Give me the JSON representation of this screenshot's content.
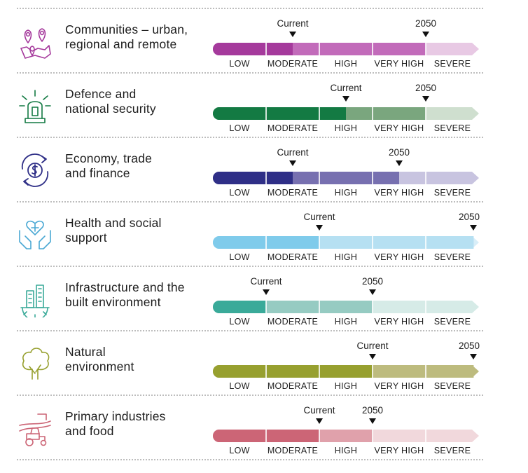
{
  "levels": [
    "LOW",
    "MODERATE",
    "HIGH",
    "VERY HIGH",
    "SEVERE"
  ],
  "marker_labels": {
    "current": "Current",
    "future": "2050"
  },
  "chart_data": {
    "type": "bar",
    "categories": [
      "LOW",
      "MODERATE",
      "HIGH",
      "VERY HIGH",
      "SEVERE"
    ],
    "scale": "0 = LOW ... 5 = end of SEVERE",
    "rows": [
      {
        "name": "Communities – urban, regional and remote",
        "lines": [
          "Communities – urban,",
          "regional and remote"
        ],
        "current": 1.5,
        "2050": 4.0,
        "dark": "#a53a9c",
        "light": "#c26bba",
        "pale": "#e8c9e4",
        "icon": "location-pins-map-icon"
      },
      {
        "name": "Defence and national security",
        "lines": [
          "Defence and",
          "national security"
        ],
        "current": 2.5,
        "2050": 4.0,
        "dark": "#137a43",
        "light": "#7aa67e",
        "pale": "#cfdfcf",
        "icon": "siren-alarm-icon"
      },
      {
        "name": "Economy, trade and finance",
        "lines": [
          "Economy, trade",
          "and finance"
        ],
        "current": 1.5,
        "2050": 3.5,
        "dark": "#2f2f87",
        "light": "#7770b0",
        "pale": "#c8c4e0",
        "icon": "currency-cycle-icon"
      },
      {
        "name": "Health and social support",
        "lines": [
          "Health and social",
          "support"
        ],
        "current": 2.0,
        "2050": 4.9,
        "dark": "#7fcbeb",
        "light": "#b6e0f2",
        "pale": "#d8eef8",
        "icon": "hands-heart-icon"
      },
      {
        "name": "Infrastructure and the built environment",
        "lines": [
          "Infrastructure and the",
          "built environment"
        ],
        "current": 1.0,
        "2050": 3.0,
        "dark": "#3aaa99",
        "light": "#96cbc2",
        "pale": "#d6ebe7",
        "icon": "buildings-gear-icon"
      },
      {
        "name": "Natural environment",
        "lines": [
          "Natural",
          "environment"
        ],
        "current": 3.0,
        "2050": 4.9,
        "dark": "#97a02f",
        "light": "#bdbb7e",
        "pale": "#bdbb7e",
        "icon": "tree-icon"
      },
      {
        "name": "Primary industries and food",
        "lines": [
          "Primary industries",
          "and food"
        ],
        "current": 2.0,
        "2050": 3.0,
        "dark": "#cc6576",
        "light": "#e0a1ab",
        "pale": "#f1d8dc",
        "icon": "tractor-field-icon"
      }
    ]
  }
}
